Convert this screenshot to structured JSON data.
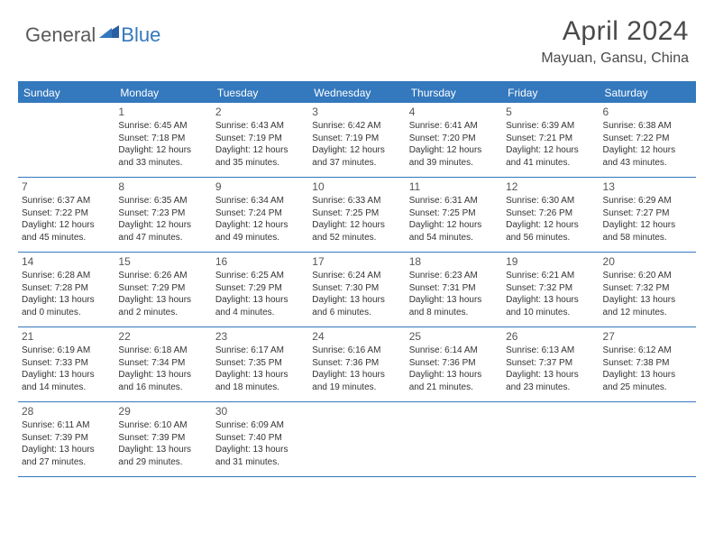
{
  "logo": {
    "text1": "General",
    "text2": "Blue"
  },
  "title": "April 2024",
  "location": "Mayuan, Gansu, China",
  "colors": {
    "accent": "#3478bd",
    "headerText": "#ffffff",
    "bodyText": "#333333",
    "titleText": "#4a4a4a"
  },
  "weekdays": [
    "Sunday",
    "Monday",
    "Tuesday",
    "Wednesday",
    "Thursday",
    "Friday",
    "Saturday"
  ],
  "weeks": [
    [
      {
        "n": "",
        "sr": "",
        "ss": "",
        "d1": "",
        "d2": ""
      },
      {
        "n": "1",
        "sr": "Sunrise: 6:45 AM",
        "ss": "Sunset: 7:18 PM",
        "d1": "Daylight: 12 hours",
        "d2": "and 33 minutes."
      },
      {
        "n": "2",
        "sr": "Sunrise: 6:43 AM",
        "ss": "Sunset: 7:19 PM",
        "d1": "Daylight: 12 hours",
        "d2": "and 35 minutes."
      },
      {
        "n": "3",
        "sr": "Sunrise: 6:42 AM",
        "ss": "Sunset: 7:19 PM",
        "d1": "Daylight: 12 hours",
        "d2": "and 37 minutes."
      },
      {
        "n": "4",
        "sr": "Sunrise: 6:41 AM",
        "ss": "Sunset: 7:20 PM",
        "d1": "Daylight: 12 hours",
        "d2": "and 39 minutes."
      },
      {
        "n": "5",
        "sr": "Sunrise: 6:39 AM",
        "ss": "Sunset: 7:21 PM",
        "d1": "Daylight: 12 hours",
        "d2": "and 41 minutes."
      },
      {
        "n": "6",
        "sr": "Sunrise: 6:38 AM",
        "ss": "Sunset: 7:22 PM",
        "d1": "Daylight: 12 hours",
        "d2": "and 43 minutes."
      }
    ],
    [
      {
        "n": "7",
        "sr": "Sunrise: 6:37 AM",
        "ss": "Sunset: 7:22 PM",
        "d1": "Daylight: 12 hours",
        "d2": "and 45 minutes."
      },
      {
        "n": "8",
        "sr": "Sunrise: 6:35 AM",
        "ss": "Sunset: 7:23 PM",
        "d1": "Daylight: 12 hours",
        "d2": "and 47 minutes."
      },
      {
        "n": "9",
        "sr": "Sunrise: 6:34 AM",
        "ss": "Sunset: 7:24 PM",
        "d1": "Daylight: 12 hours",
        "d2": "and 49 minutes."
      },
      {
        "n": "10",
        "sr": "Sunrise: 6:33 AM",
        "ss": "Sunset: 7:25 PM",
        "d1": "Daylight: 12 hours",
        "d2": "and 52 minutes."
      },
      {
        "n": "11",
        "sr": "Sunrise: 6:31 AM",
        "ss": "Sunset: 7:25 PM",
        "d1": "Daylight: 12 hours",
        "d2": "and 54 minutes."
      },
      {
        "n": "12",
        "sr": "Sunrise: 6:30 AM",
        "ss": "Sunset: 7:26 PM",
        "d1": "Daylight: 12 hours",
        "d2": "and 56 minutes."
      },
      {
        "n": "13",
        "sr": "Sunrise: 6:29 AM",
        "ss": "Sunset: 7:27 PM",
        "d1": "Daylight: 12 hours",
        "d2": "and 58 minutes."
      }
    ],
    [
      {
        "n": "14",
        "sr": "Sunrise: 6:28 AM",
        "ss": "Sunset: 7:28 PM",
        "d1": "Daylight: 13 hours",
        "d2": "and 0 minutes."
      },
      {
        "n": "15",
        "sr": "Sunrise: 6:26 AM",
        "ss": "Sunset: 7:29 PM",
        "d1": "Daylight: 13 hours",
        "d2": "and 2 minutes."
      },
      {
        "n": "16",
        "sr": "Sunrise: 6:25 AM",
        "ss": "Sunset: 7:29 PM",
        "d1": "Daylight: 13 hours",
        "d2": "and 4 minutes."
      },
      {
        "n": "17",
        "sr": "Sunrise: 6:24 AM",
        "ss": "Sunset: 7:30 PM",
        "d1": "Daylight: 13 hours",
        "d2": "and 6 minutes."
      },
      {
        "n": "18",
        "sr": "Sunrise: 6:23 AM",
        "ss": "Sunset: 7:31 PM",
        "d1": "Daylight: 13 hours",
        "d2": "and 8 minutes."
      },
      {
        "n": "19",
        "sr": "Sunrise: 6:21 AM",
        "ss": "Sunset: 7:32 PM",
        "d1": "Daylight: 13 hours",
        "d2": "and 10 minutes."
      },
      {
        "n": "20",
        "sr": "Sunrise: 6:20 AM",
        "ss": "Sunset: 7:32 PM",
        "d1": "Daylight: 13 hours",
        "d2": "and 12 minutes."
      }
    ],
    [
      {
        "n": "21",
        "sr": "Sunrise: 6:19 AM",
        "ss": "Sunset: 7:33 PM",
        "d1": "Daylight: 13 hours",
        "d2": "and 14 minutes."
      },
      {
        "n": "22",
        "sr": "Sunrise: 6:18 AM",
        "ss": "Sunset: 7:34 PM",
        "d1": "Daylight: 13 hours",
        "d2": "and 16 minutes."
      },
      {
        "n": "23",
        "sr": "Sunrise: 6:17 AM",
        "ss": "Sunset: 7:35 PM",
        "d1": "Daylight: 13 hours",
        "d2": "and 18 minutes."
      },
      {
        "n": "24",
        "sr": "Sunrise: 6:16 AM",
        "ss": "Sunset: 7:36 PM",
        "d1": "Daylight: 13 hours",
        "d2": "and 19 minutes."
      },
      {
        "n": "25",
        "sr": "Sunrise: 6:14 AM",
        "ss": "Sunset: 7:36 PM",
        "d1": "Daylight: 13 hours",
        "d2": "and 21 minutes."
      },
      {
        "n": "26",
        "sr": "Sunrise: 6:13 AM",
        "ss": "Sunset: 7:37 PM",
        "d1": "Daylight: 13 hours",
        "d2": "and 23 minutes."
      },
      {
        "n": "27",
        "sr": "Sunrise: 6:12 AM",
        "ss": "Sunset: 7:38 PM",
        "d1": "Daylight: 13 hours",
        "d2": "and 25 minutes."
      }
    ],
    [
      {
        "n": "28",
        "sr": "Sunrise: 6:11 AM",
        "ss": "Sunset: 7:39 PM",
        "d1": "Daylight: 13 hours",
        "d2": "and 27 minutes."
      },
      {
        "n": "29",
        "sr": "Sunrise: 6:10 AM",
        "ss": "Sunset: 7:39 PM",
        "d1": "Daylight: 13 hours",
        "d2": "and 29 minutes."
      },
      {
        "n": "30",
        "sr": "Sunrise: 6:09 AM",
        "ss": "Sunset: 7:40 PM",
        "d1": "Daylight: 13 hours",
        "d2": "and 31 minutes."
      },
      {
        "n": "",
        "sr": "",
        "ss": "",
        "d1": "",
        "d2": ""
      },
      {
        "n": "",
        "sr": "",
        "ss": "",
        "d1": "",
        "d2": ""
      },
      {
        "n": "",
        "sr": "",
        "ss": "",
        "d1": "",
        "d2": ""
      },
      {
        "n": "",
        "sr": "",
        "ss": "",
        "d1": "",
        "d2": ""
      }
    ]
  ]
}
